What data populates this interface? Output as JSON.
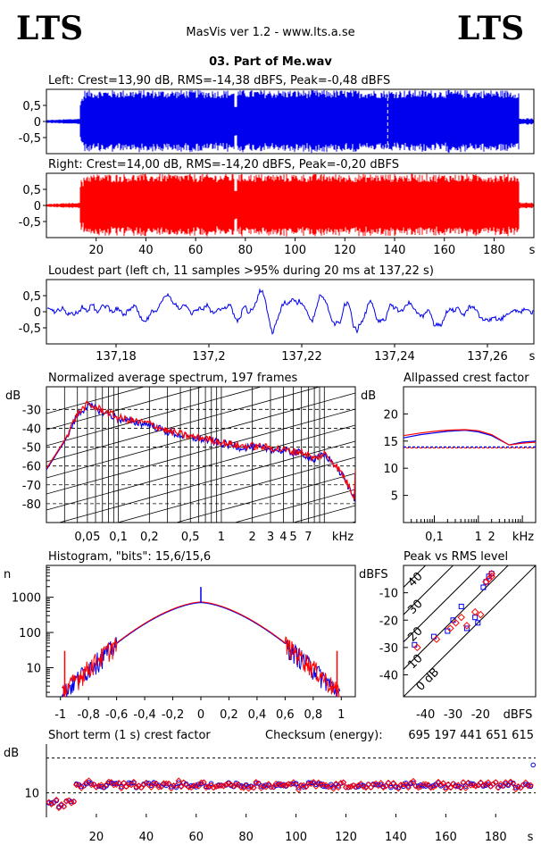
{
  "header": {
    "logo_left": "LTS",
    "logo_right": "LTS",
    "app": "MasVis ver 1.2 - www.lts.a.se",
    "file": "03. Part of Me.wav"
  },
  "colors": {
    "left": "#0000ee",
    "right": "#ff0000"
  },
  "chart_data": [
    {
      "id": "left",
      "type": "line",
      "title": "Left: Crest=13,90 dB, RMS=-14,38 dBFS, Peak=-0,48 dBFS",
      "yticks": [
        "0,5",
        "0",
        "-0,5"
      ],
      "ylim": [
        -1,
        1
      ],
      "xlim": [
        0,
        196
      ],
      "envelope": {
        "silence_until_s": 13.5,
        "fade_in_end_s": 15,
        "dip_s": 76,
        "end_s": 190
      }
    },
    {
      "id": "right",
      "type": "line",
      "title": "Right: Crest=14,00 dB, RMS=-14,20 dBFS, Peak=-0,20 dBFS",
      "yticks": [
        "0,5",
        "0",
        "-0,5"
      ],
      "ylim": [
        -1,
        1
      ],
      "xlim": [
        0,
        196
      ],
      "xticks": [
        20,
        40,
        60,
        80,
        100,
        120,
        140,
        160,
        180
      ],
      "xunit": "s"
    },
    {
      "id": "loudest",
      "type": "line",
      "title": "Loudest part (left  ch, 11 samples >95% during 20 ms at 137,22 s)",
      "yticks": [
        "0,5",
        "0",
        "-0,5"
      ],
      "ylim": [
        -1,
        1
      ],
      "xlim": [
        137.165,
        137.27
      ],
      "xticks": [
        "137,18",
        "137,2",
        "137,22",
        "137,24",
        "137,26"
      ],
      "xtick_values": [
        137.18,
        137.2,
        137.22,
        137.24,
        137.26
      ],
      "xunit": "s"
    },
    {
      "id": "spectrum",
      "type": "line",
      "title": "Normalized average spectrum, 197 frames",
      "ylabel": "dB",
      "yticks": [
        -30,
        -40,
        -50,
        -60,
        -70,
        -80
      ],
      "ylim": [
        -90,
        -18
      ],
      "xticks": [
        "0,05",
        "0,1",
        "0,2",
        "0,5",
        "1",
        "2",
        "3",
        "4",
        "5",
        "7"
      ],
      "xtick_values": [
        0.05,
        0.1,
        0.2,
        0.5,
        1,
        2,
        3,
        4,
        5,
        7
      ],
      "xunit": "kHz",
      "xlim": [
        0.02,
        20
      ],
      "points_x": [
        0.02,
        0.03,
        0.04,
        0.05,
        0.07,
        0.1,
        0.15,
        0.2,
        0.3,
        0.5,
        0.7,
        1,
        1.5,
        2,
        3,
        4,
        5,
        6,
        7,
        8,
        10,
        12,
        15,
        20
      ],
      "points_y": [
        -62,
        -47,
        -33,
        -28,
        -31,
        -35,
        -37,
        -38,
        -42,
        -45,
        -46,
        -48,
        -50,
        -50,
        -51,
        -52,
        -53,
        -53,
        -55,
        -57,
        -54,
        -58,
        -65,
        -78
      ]
    },
    {
      "id": "crest",
      "type": "line",
      "title": "Allpassed crest factor",
      "ylabel": "dB",
      "yticks": [
        20,
        15,
        10,
        5
      ],
      "ylim": [
        0,
        25
      ],
      "xticks": [
        "0,1",
        "1",
        "2"
      ],
      "xtick_values": [
        0.1,
        1,
        2
      ],
      "xunit": "kHz",
      "xlim": [
        0.02,
        20
      ],
      "reference_db": 13.9,
      "points_x": [
        0.02,
        0.05,
        0.1,
        0.2,
        0.5,
        1,
        2,
        5,
        10,
        20
      ],
      "left_y": [
        15.6,
        16.2,
        16.5,
        16.8,
        17.0,
        16.7,
        16.0,
        14.3,
        14.8,
        15.0
      ],
      "right_y": [
        16.0,
        16.5,
        16.8,
        17.0,
        17.1,
        16.9,
        16.2,
        14.3,
        14.6,
        14.8
      ]
    },
    {
      "id": "histogram",
      "type": "bar",
      "title": "Histogram, \"bits\": 15,6/15,6",
      "ylabel": "n",
      "yticks": [
        1000,
        100,
        10
      ],
      "ylim": [
        1.5,
        8000
      ],
      "xticks": [
        "-1",
        "-0,8",
        "-0,6",
        "-0,4",
        "-0,2",
        "0",
        "0,2",
        "0,4",
        "0,6",
        "0,8",
        "1"
      ],
      "xtick_values": [
        -1,
        -0.8,
        -0.6,
        -0.4,
        -0.2,
        0,
        0.2,
        0.4,
        0.6,
        0.8,
        1
      ],
      "xlim": [
        -1.1,
        1.1
      ],
      "peak_count": 700,
      "edge_count": 1.8,
      "clip_count": 30
    },
    {
      "id": "peak_rms",
      "type": "scatter",
      "title": "Peak vs RMS level",
      "ylabel": "dBFS",
      "yticks": [
        -10,
        -20,
        -30,
        -40
      ],
      "xticks": [
        "-40",
        "-30",
        "-20",
        "dBFS"
      ],
      "xtick_values": [
        -40,
        -30,
        -20
      ],
      "xlim": [
        -48,
        0
      ],
      "ylim": [
        -48,
        0
      ],
      "diagonal_labels": [
        "40",
        "30",
        "20",
        "10",
        "0 dB"
      ],
      "left_x": [
        -44,
        -37,
        -32,
        -30,
        -27,
        -25,
        -22,
        -21,
        -19,
        -18,
        -17,
        -16
      ],
      "left_y": [
        -29,
        -26,
        -24,
        -20,
        -15,
        -23,
        -19,
        -21,
        -8,
        -6,
        -4,
        -3
      ],
      "right_x": [
        -43,
        -36,
        -31,
        -29,
        -27,
        -25,
        -22,
        -20,
        -18,
        -17,
        -16,
        -16
      ],
      "right_y": [
        -30,
        -27,
        -23,
        -21,
        -19,
        -22,
        -17,
        -18,
        -6,
        -5,
        -4,
        -3
      ]
    },
    {
      "id": "short_crest",
      "type": "scatter",
      "title": "Short term (1 s) crest factor",
      "ylabel": "dB",
      "yticks": [
        10
      ],
      "ylim": [
        3,
        24
      ],
      "xticks": [
        20,
        40,
        60,
        80,
        100,
        120,
        140,
        160,
        180
      ],
      "xunit": "s",
      "xlim": [
        0,
        196
      ],
      "ref_lines": [
        10,
        20
      ],
      "checksum_label": "Checksum (energy):",
      "checksum_value": "695 197 441 651 615"
    }
  ]
}
